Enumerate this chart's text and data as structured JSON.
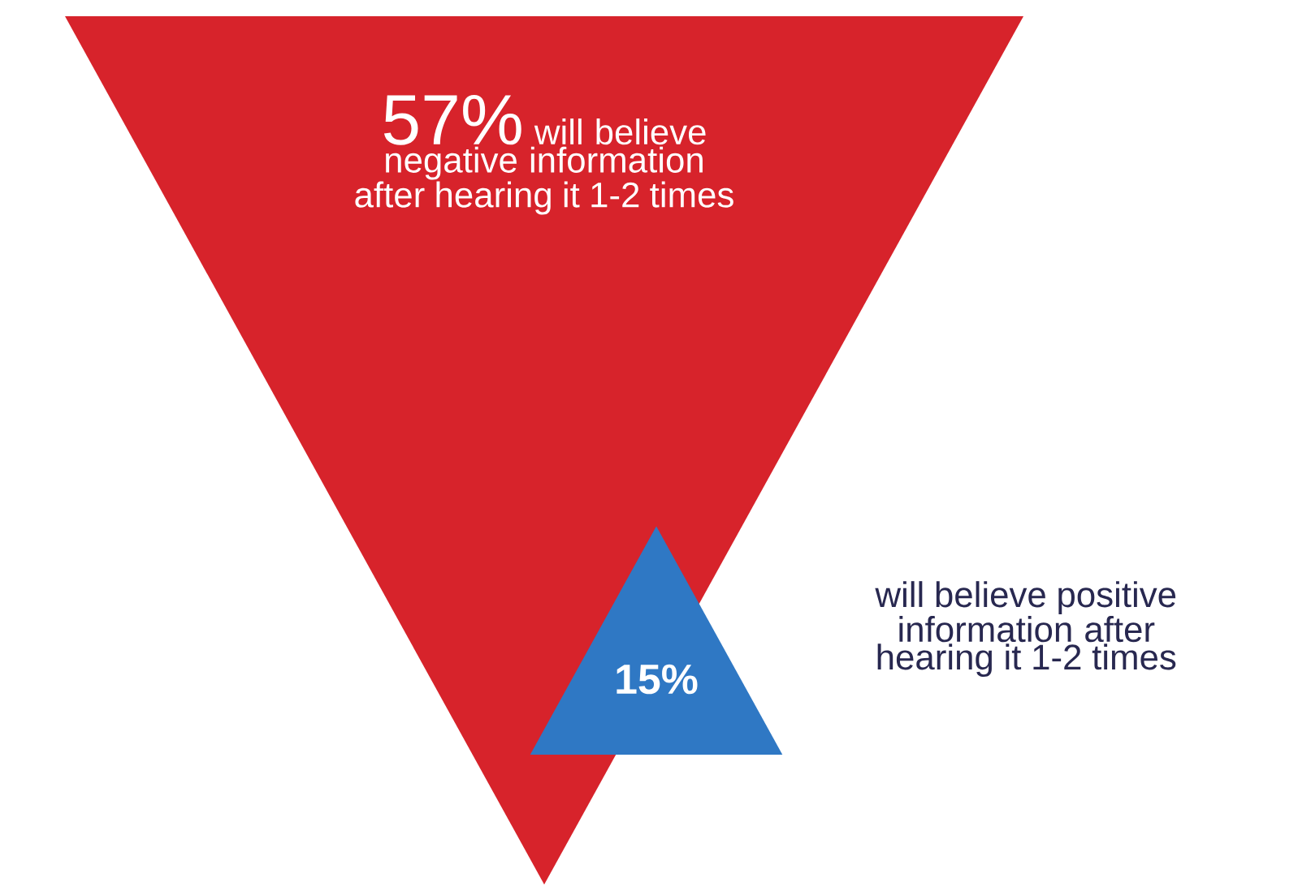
{
  "chart_data": {
    "type": "other",
    "categories": [
      "will believe negative information after hearing it 1-2 times",
      "will believe positive information after hearing it 1-2 times"
    ],
    "values": [
      57,
      15
    ],
    "value_labels": [
      "57%",
      "15%"
    ],
    "colors": [
      "#d7232b",
      "#2f78c4"
    ]
  }
}
